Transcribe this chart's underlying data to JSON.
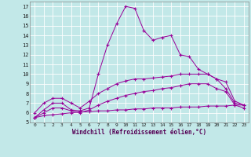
{
  "xlabel": "Windchill (Refroidissement éolien,°C)",
  "background_color": "#c2e8e8",
  "line_color": "#990099",
  "grid_color": "#ffffff",
  "xlim": [
    -0.5,
    23.5
  ],
  "ylim": [
    5,
    17.5
  ],
  "xticks": [
    0,
    1,
    2,
    3,
    4,
    5,
    6,
    7,
    8,
    9,
    10,
    11,
    12,
    13,
    14,
    15,
    16,
    17,
    18,
    19,
    20,
    21,
    22,
    23
  ],
  "yticks": [
    5,
    6,
    7,
    8,
    9,
    10,
    11,
    12,
    13,
    14,
    15,
    16,
    17
  ],
  "series1_x": [
    0,
    1,
    2,
    3,
    4,
    5,
    6,
    7,
    8,
    9,
    10,
    11,
    12,
    13,
    14,
    15,
    16,
    17,
    18,
    19,
    20,
    21,
    22,
    23
  ],
  "series1_y": [
    5.5,
    6.3,
    7.0,
    7.0,
    6.3,
    6.2,
    6.5,
    10.0,
    13.0,
    15.2,
    17.0,
    16.8,
    14.5,
    13.5,
    13.8,
    14.0,
    12.0,
    11.8,
    10.5,
    10.0,
    9.5,
    8.5,
    7.0,
    6.8
  ],
  "series2_x": [
    0,
    1,
    2,
    3,
    4,
    5,
    6,
    7,
    8,
    9,
    10,
    11,
    12,
    13,
    14,
    15,
    16,
    17,
    18,
    19,
    20,
    21,
    22,
    23
  ],
  "series2_y": [
    6.0,
    7.0,
    7.5,
    7.5,
    7.0,
    6.5,
    7.2,
    8.0,
    8.5,
    9.0,
    9.3,
    9.5,
    9.5,
    9.6,
    9.7,
    9.8,
    10.0,
    10.0,
    10.0,
    10.0,
    9.5,
    9.2,
    7.2,
    6.8
  ],
  "series3_x": [
    0,
    1,
    2,
    3,
    4,
    5,
    6,
    7,
    8,
    9,
    10,
    11,
    12,
    13,
    14,
    15,
    16,
    17,
    18,
    19,
    20,
    21,
    22,
    23
  ],
  "series3_y": [
    5.5,
    6.0,
    6.5,
    6.5,
    6.2,
    6.0,
    6.3,
    6.8,
    7.2,
    7.5,
    7.8,
    8.0,
    8.2,
    8.3,
    8.5,
    8.6,
    8.8,
    9.0,
    9.0,
    9.0,
    8.5,
    8.2,
    6.8,
    6.5
  ],
  "series4_x": [
    0,
    1,
    2,
    3,
    4,
    5,
    6,
    7,
    8,
    9,
    10,
    11,
    12,
    13,
    14,
    15,
    16,
    17,
    18,
    19,
    20,
    21,
    22,
    23
  ],
  "series4_y": [
    5.5,
    5.7,
    5.8,
    5.9,
    6.0,
    6.1,
    6.1,
    6.2,
    6.2,
    6.3,
    6.3,
    6.4,
    6.4,
    6.5,
    6.5,
    6.5,
    6.6,
    6.6,
    6.6,
    6.7,
    6.7,
    6.7,
    6.8,
    6.8
  ]
}
